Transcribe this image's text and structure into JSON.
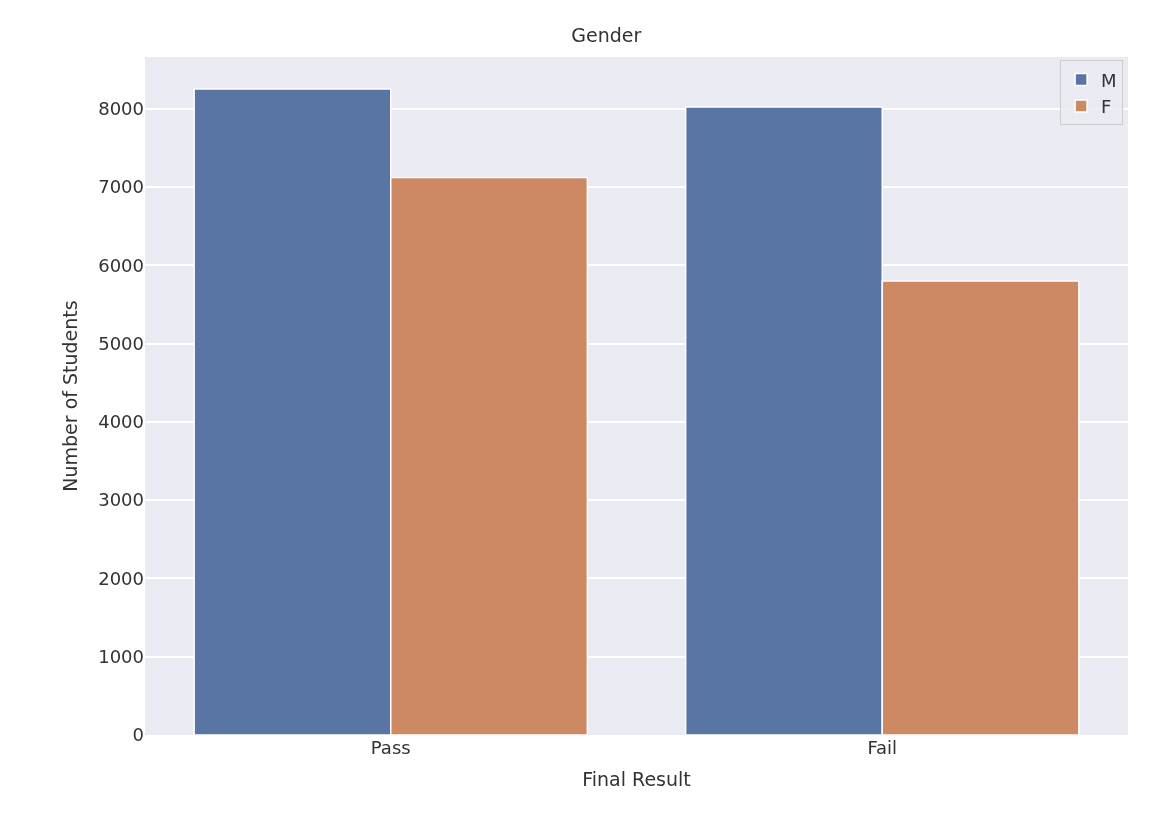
{
  "chart_data": {
    "type": "bar",
    "title": "Gender",
    "xlabel": "Final Result",
    "ylabel": "Number of Students",
    "categories": [
      "Pass",
      "Fail"
    ],
    "series": [
      {
        "name": "M",
        "color": "#5975a4",
        "values": [
          8250,
          8020
        ]
      },
      {
        "name": "F",
        "color": "#cc8963",
        "values": [
          7120,
          5800
        ]
      }
    ],
    "ylim": [
      0,
      8660
    ],
    "yticks": [
      0,
      1000,
      2000,
      3000,
      4000,
      5000,
      6000,
      7000,
      8000
    ],
    "grid": "y",
    "legend": "top right"
  }
}
